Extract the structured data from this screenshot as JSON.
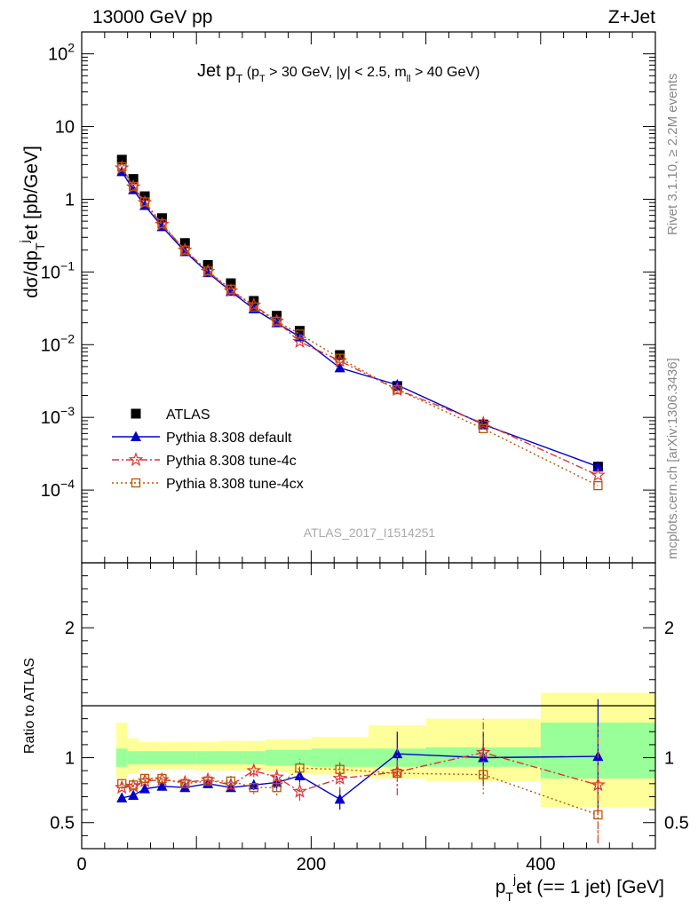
{
  "header": {
    "left": "13000 GeV pp",
    "right": "Z+Jet"
  },
  "side_text": {
    "rivet": "Rivet 3.1.10, ≥ 2.2M events",
    "mcplots": "mcplots.cern.ch [arXiv:1306.3436]"
  },
  "watermark": "ATLAS_2017_I1514251",
  "chart_data": [
    {
      "type": "line",
      "title": "Jet p_T (p_T > 30 GeV, |y| < 2.5, m_ll > 40 GeV)",
      "xlabel": "p_T^j et (== 1 jet) [GeV]",
      "ylabel": "dσ/dp_T^j et [pb/GeV]",
      "xlim": [
        0,
        500
      ],
      "ylim": [
        1e-05,
        200
      ],
      "yscale": "log",
      "y_ticks": [
        "10^-4",
        "10^-3",
        "10^-2",
        "10^-1",
        "1",
        "10",
        "10^2"
      ],
      "legend_position": "lower-left",
      "x": [
        35,
        45,
        55,
        70,
        90,
        110,
        130,
        150,
        170,
        190,
        225,
        275,
        350,
        450
      ],
      "series": [
        {
          "name": "ATLAS",
          "color": "#000000",
          "marker": "square",
          "values": [
            3.5,
            1.9,
            1.1,
            0.55,
            0.25,
            0.125,
            0.07,
            0.04,
            0.025,
            0.0155,
            0.0072,
            0.0027,
            0.0008,
            0.00021
          ]
        },
        {
          "name": "Pythia 8.308 default",
          "color": "#0000cc",
          "marker": "triangle",
          "values": [
            2.4,
            1.35,
            0.82,
            0.42,
            0.19,
            0.098,
            0.054,
            0.031,
            0.02,
            0.0128,
            0.0048,
            0.0028,
            0.0008,
            0.00021
          ]
        },
        {
          "name": "Pythia 8.308 tune-4c",
          "color": "#dd3333",
          "marker": "star",
          "values": [
            2.7,
            1.48,
            0.9,
            0.45,
            0.2,
            0.102,
            0.055,
            0.035,
            0.021,
            0.011,
            0.006,
            0.0024,
            0.00083,
            0.00016
          ]
        },
        {
          "name": "Pythia 8.308 tune-4cx",
          "color": "#bb5500",
          "marker": "open-square",
          "values": [
            2.8,
            1.5,
            0.92,
            0.46,
            0.2,
            0.103,
            0.058,
            0.033,
            0.021,
            0.014,
            0.0065,
            0.0024,
            0.0007,
            0.000115
          ]
        }
      ]
    },
    {
      "type": "line",
      "xlabel": "p_T^j et (== 1 jet) [GeV]",
      "ylabel": "Ratio to ATLAS",
      "xlim": [
        0,
        500
      ],
      "ylim": [
        0.3,
        2.5
      ],
      "y_ticks": [
        0.5,
        1,
        2
      ],
      "x_ticks": [
        0,
        200,
        400
      ],
      "bands": {
        "edges": [
          30,
          40,
          50,
          60,
          80,
          100,
          120,
          140,
          160,
          180,
          200,
          250,
          300,
          400,
          500
        ],
        "green_lo": [
          0.93,
          0.95,
          0.95,
          0.95,
          0.95,
          0.95,
          0.95,
          0.95,
          0.94,
          0.94,
          0.93,
          0.93,
          0.93,
          0.84
        ],
        "green_hi": [
          1.07,
          1.05,
          1.05,
          1.05,
          1.05,
          1.05,
          1.05,
          1.05,
          1.06,
          1.06,
          1.07,
          1.07,
          1.08,
          1.27
        ],
        "yellow_lo": [
          0.84,
          0.88,
          0.91,
          0.91,
          0.91,
          0.9,
          0.9,
          0.9,
          0.89,
          0.88,
          0.87,
          0.84,
          0.82,
          0.62
        ],
        "yellow_hi": [
          1.27,
          1.15,
          1.12,
          1.12,
          1.12,
          1.12,
          1.13,
          1.13,
          1.14,
          1.14,
          1.16,
          1.25,
          1.3,
          1.5
        ]
      },
      "x": [
        35,
        45,
        55,
        70,
        90,
        110,
        130,
        150,
        170,
        190,
        225,
        275,
        350,
        450
      ],
      "series": [
        {
          "name": "Pythia 8.308 default",
          "color": "#0000cc",
          "marker": "triangle",
          "values": [
            0.69,
            0.71,
            0.76,
            0.78,
            0.77,
            0.8,
            0.77,
            0.79,
            0.81,
            0.86,
            0.68,
            1.03,
            1.0,
            1.01
          ],
          "err": [
            0.01,
            0.01,
            0.01,
            0.01,
            0.01,
            0.02,
            0.03,
            0.04,
            0.05,
            0.05,
            0.08,
            0.17,
            0.2,
            0.44
          ]
        },
        {
          "name": "Pythia 8.308 tune-4c",
          "color": "#dd3333",
          "marker": "star",
          "values": [
            0.77,
            0.78,
            0.82,
            0.83,
            0.81,
            0.83,
            0.79,
            0.9,
            0.85,
            0.74,
            0.84,
            0.89,
            1.04,
            0.79
          ],
          "err": [
            0.01,
            0.01,
            0.01,
            0.01,
            0.02,
            0.03,
            0.04,
            0.05,
            0.06,
            0.07,
            0.12,
            0.18,
            0.26,
            0.45
          ]
        },
        {
          "name": "Pythia 8.308 tune-4cx",
          "color": "#bb5500",
          "marker": "open-square",
          "values": [
            0.8,
            0.79,
            0.84,
            0.84,
            0.8,
            0.82,
            0.82,
            0.77,
            0.77,
            0.92,
            0.91,
            0.88,
            0.87,
            0.56
          ],
          "err": [
            0.01,
            0.01,
            0.01,
            0.01,
            0.02,
            0.03,
            0.04,
            0.05,
            0.06,
            0.07,
            0.06,
            0.1,
            0.15,
            0.2
          ]
        }
      ]
    }
  ]
}
